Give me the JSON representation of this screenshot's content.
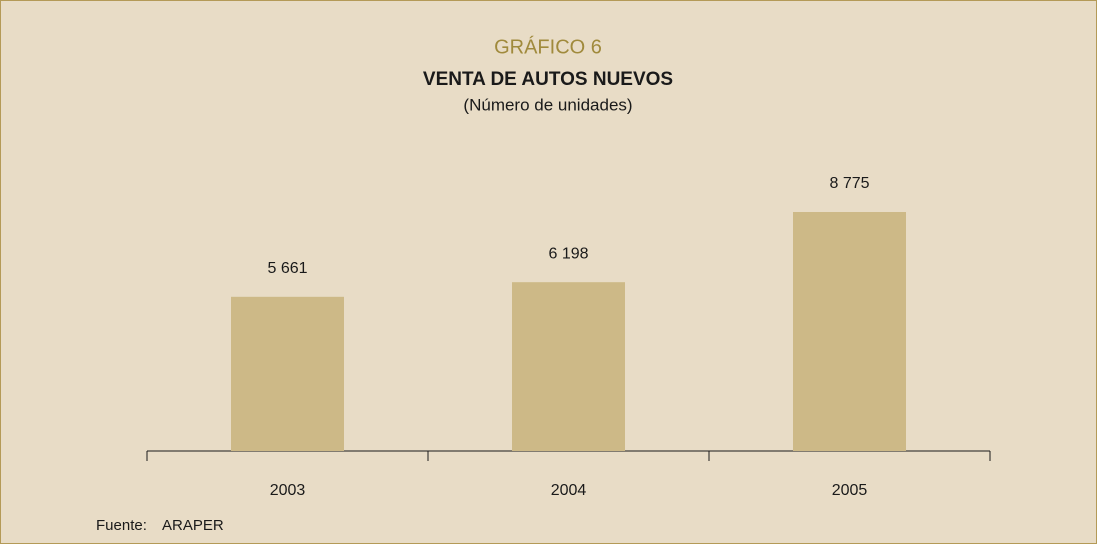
{
  "chart_data": {
    "type": "bar",
    "title": "GRÁFICO 6",
    "subtitle": "VENTA DE AUTOS NUEVOS",
    "unit_label": "(Número de unidades)",
    "categories": [
      "2003",
      "2004",
      "2005"
    ],
    "values": [
      5661,
      6198,
      8775
    ],
    "value_labels": [
      "5 661",
      "6 198",
      "8 775"
    ],
    "color": "#cdb987",
    "source_label": "Fuente:",
    "source": "ARAPER"
  }
}
